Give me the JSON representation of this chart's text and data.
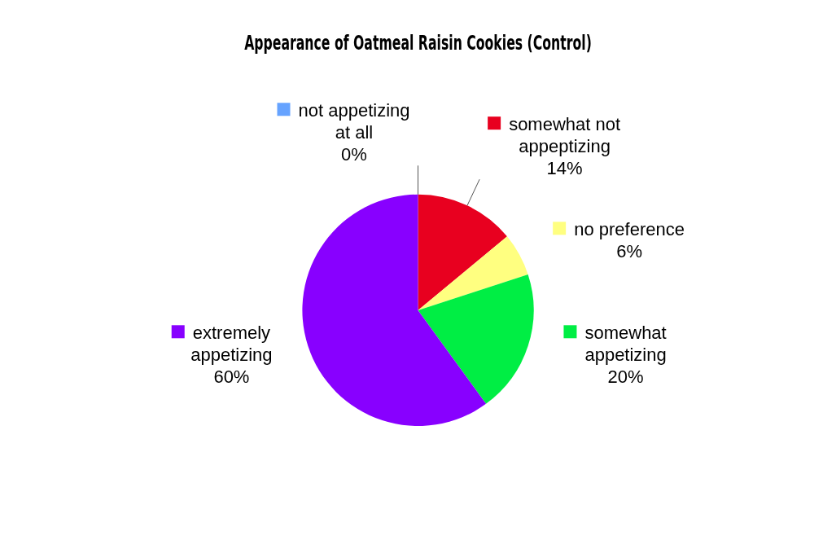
{
  "chart_data": {
    "type": "pie",
    "title": "Appearance of Oatmeal Raisin Cookies (Control)",
    "categories": [
      "not appetizing at all",
      "somewhat not appeptizing",
      "no preference",
      "somewhat appetizing",
      "extremely appetizing"
    ],
    "values": [
      0,
      14,
      6,
      20,
      60
    ],
    "colors": [
      "#66a3ff",
      "#e8001f",
      "#ffff80",
      "#00ee44",
      "#8800ff"
    ],
    "value_labels": [
      "0%",
      "14%",
      "6%",
      "20%",
      "60%"
    ],
    "legend": "right"
  }
}
